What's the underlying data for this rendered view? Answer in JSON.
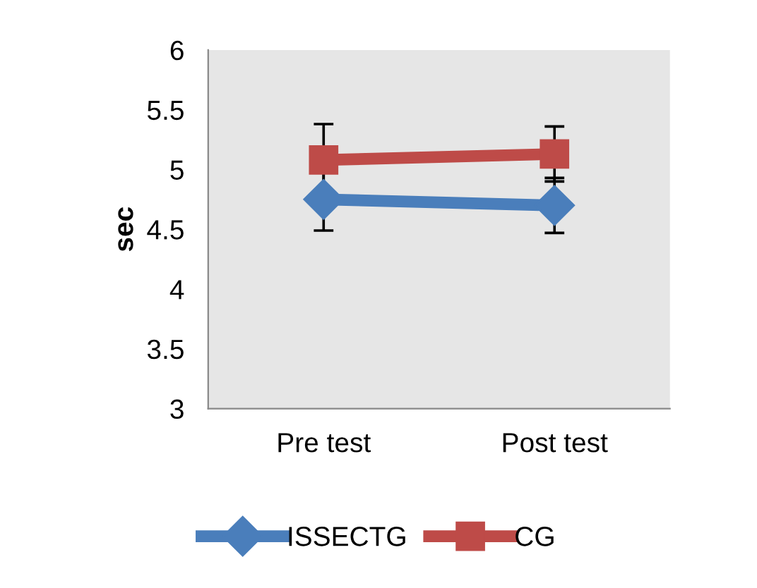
{
  "chart_data": {
    "type": "line",
    "ylabel": "sec",
    "categories": [
      "Pre test",
      "Post test"
    ],
    "series": [
      {
        "name": "ISSECTG",
        "color": "#4a7ebb",
        "values": [
          4.75,
          4.7
        ],
        "errors": [
          0.26,
          0.23
        ],
        "marker": "diamond"
      },
      {
        "name": "CG",
        "color": "#be4b48",
        "values": [
          5.08,
          5.13
        ],
        "errors": [
          0.3,
          0.23
        ],
        "marker": "square"
      }
    ],
    "ylim": [
      3,
      6
    ],
    "yticks": [
      3,
      3.5,
      4,
      4.5,
      5,
      5.5,
      6
    ],
    "grid": false,
    "legend": "bottom"
  }
}
